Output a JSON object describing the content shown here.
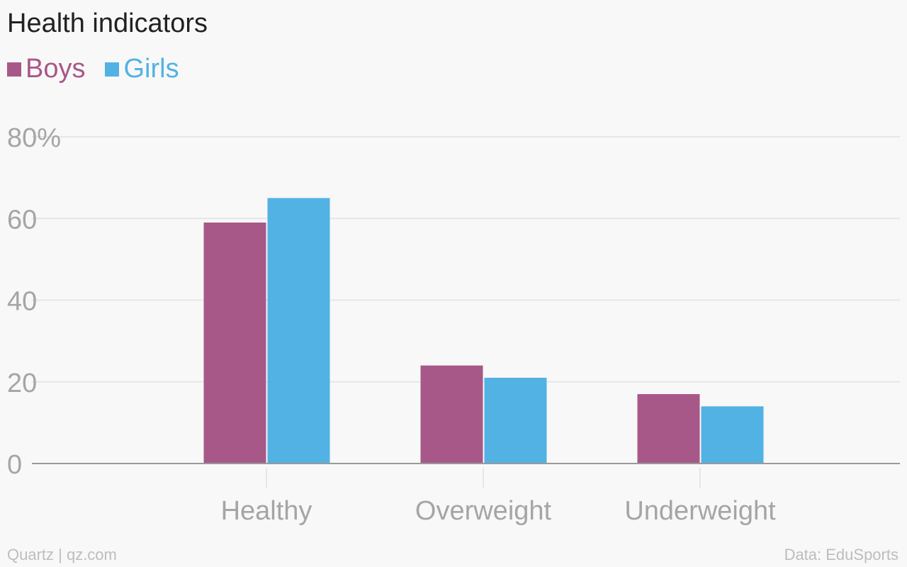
{
  "colors": {
    "boys": "#a85888",
    "girls": "#52b2e3",
    "grid": "#e6e6e6",
    "axis": "#999999",
    "tick_text": "#a5a5a5"
  },
  "chart_data": {
    "type": "bar",
    "title": "Health indicators",
    "categories": [
      "Healthy",
      "Overweight",
      "Underweight"
    ],
    "series": [
      {
        "name": "Boys",
        "values": [
          59,
          24,
          17
        ]
      },
      {
        "name": "Girls",
        "values": [
          65,
          21,
          14
        ]
      }
    ],
    "ylim": [
      0,
      80
    ],
    "yticks": [
      0,
      20,
      40,
      60,
      80
    ],
    "ytick_labels": [
      "0",
      "20",
      "40",
      "60",
      "80%"
    ],
    "xlabel": "",
    "ylabel": "",
    "grid": true,
    "legend_position": "top-left"
  },
  "footer": {
    "source_left": "Quartz | qz.com",
    "source_right": "Data: EduSports"
  }
}
